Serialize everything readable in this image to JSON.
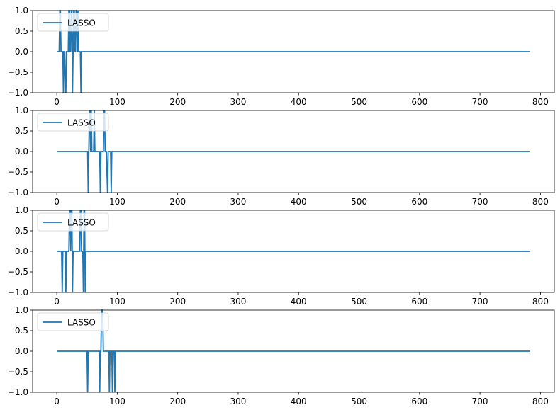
{
  "chart_data": [
    {
      "type": "line",
      "title": "",
      "xlabel": "",
      "ylabel": "",
      "xlim": [
        -40,
        823
      ],
      "ylim": [
        -1.0,
        1.0
      ],
      "xticks": [
        "0",
        "100",
        "200",
        "300",
        "400",
        "500",
        "600",
        "700",
        "800"
      ],
      "yticks": [
        "-1.0",
        "-0.5",
        "0.0",
        "0.5",
        "1.0"
      ],
      "legend": {
        "position": "top-left",
        "entries": [
          "LASSO"
        ]
      },
      "grid": false,
      "series": [
        {
          "name": "LASSO",
          "color": "#1f77b4",
          "x": [
            0,
            4,
            5,
            6,
            7,
            10,
            11,
            12,
            13,
            14,
            15,
            16,
            17,
            18,
            19,
            20,
            21,
            22,
            23,
            24,
            25,
            26,
            27,
            28,
            29,
            30,
            31,
            32,
            33,
            34,
            35,
            36,
            37,
            38,
            39,
            40,
            41,
            783
          ],
          "y": [
            0,
            0,
            1,
            1,
            0,
            0,
            -1,
            0,
            0,
            -1,
            -1,
            0,
            0,
            0,
            0,
            1,
            1,
            0,
            0,
            1,
            1,
            -1,
            0,
            1,
            1,
            0,
            0,
            1,
            1,
            0,
            1,
            0,
            0,
            0,
            0,
            -1,
            0,
            0
          ]
        }
      ]
    },
    {
      "type": "line",
      "title": "",
      "xlabel": "",
      "ylabel": "",
      "xlim": [
        -40,
        823
      ],
      "ylim": [
        -1.0,
        1.0
      ],
      "xticks": [
        "0",
        "100",
        "200",
        "300",
        "400",
        "500",
        "600",
        "700",
        "800"
      ],
      "yticks": [
        "-1.0",
        "-0.5",
        "0.0",
        "0.5",
        "1.0"
      ],
      "legend": {
        "position": "top-left",
        "entries": [
          "LASSO"
        ]
      },
      "grid": false,
      "series": [
        {
          "name": "LASSO",
          "color": "#1f77b4",
          "x": [
            0,
            51,
            52,
            53,
            54,
            55,
            56,
            57,
            58,
            59,
            60,
            61,
            62,
            63,
            71,
            72,
            73,
            76,
            77,
            78,
            79,
            80,
            82,
            84,
            85,
            86,
            87,
            89,
            90,
            91,
            783
          ],
          "y": [
            0,
            0,
            -1,
            0,
            1,
            1,
            0,
            1,
            0,
            0,
            0,
            0,
            1,
            0,
            0,
            -1,
            0,
            0,
            0,
            1,
            1,
            0,
            0,
            -1,
            0,
            0,
            0,
            0,
            -1,
            0,
            0
          ]
        }
      ]
    },
    {
      "type": "line",
      "title": "",
      "xlabel": "",
      "ylabel": "",
      "xlim": [
        -40,
        823
      ],
      "ylim": [
        -1.0,
        1.0
      ],
      "xticks": [
        "0",
        "100",
        "200",
        "300",
        "400",
        "500",
        "600",
        "700",
        "800"
      ],
      "yticks": [
        "-1.0",
        "-0.5",
        "0.0",
        "0.5",
        "1.0"
      ],
      "legend": {
        "position": "top-left",
        "entries": [
          "LASSO"
        ]
      },
      "grid": false,
      "series": [
        {
          "name": "LASSO",
          "color": "#1f77b4",
          "x": [
            0,
            8,
            9,
            10,
            14,
            15,
            16,
            20,
            21,
            22,
            23,
            24,
            25,
            26,
            27,
            38,
            39,
            40,
            41,
            43,
            44,
            45,
            46,
            47,
            48,
            783
          ],
          "y": [
            0,
            0,
            -1,
            0,
            0,
            -1,
            0,
            0,
            1,
            1,
            0,
            1,
            1,
            -1,
            0,
            0,
            1,
            1,
            0,
            0,
            -1,
            1,
            1,
            -1,
            0,
            0
          ]
        }
      ]
    },
    {
      "type": "line",
      "title": "",
      "xlabel": "",
      "ylabel": "",
      "xlim": [
        -40,
        823
      ],
      "ylim": [
        -1.0,
        1.0
      ],
      "xticks": [
        "0",
        "100",
        "200",
        "300",
        "400",
        "500",
        "600",
        "700",
        "800"
      ],
      "yticks": [
        "-1.0",
        "-0.5",
        "0.0",
        "0.5",
        "1.0"
      ],
      "legend": {
        "position": "top-left",
        "entries": [
          "LASSO"
        ]
      },
      "grid": false,
      "series": [
        {
          "name": "LASSO",
          "color": "#1f77b4",
          "x": [
            0,
            50,
            51,
            52,
            70,
            71,
            72,
            73,
            74,
            75,
            76,
            77,
            86,
            87,
            88,
            91,
            92,
            93,
            95,
            96,
            97,
            783
          ],
          "y": [
            0,
            0,
            -1,
            0,
            0,
            -1,
            0,
            0,
            1,
            1,
            1,
            0,
            0,
            -1,
            0,
            0,
            -1,
            0,
            0,
            -1,
            0,
            0
          ]
        }
      ]
    }
  ]
}
